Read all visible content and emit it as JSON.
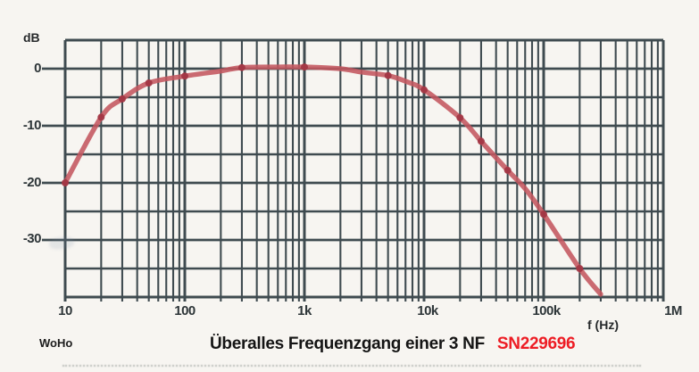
{
  "watermark": "WoHo",
  "caption": {
    "title": "Überalles Frequenzgang einer 3 NF",
    "serial": "SN229696"
  },
  "chart_data": {
    "type": "line",
    "title": "Überalles Frequenzgang einer 3 NF SN229696",
    "description": "Scanned semilog magnitude frequency-response plot (bandpass shape)",
    "x_axis": {
      "label": "f (Hz)",
      "scale": "log",
      "min": 10,
      "max": 1000000,
      "tick_values": [
        10,
        100,
        1000,
        10000,
        100000,
        1000000
      ],
      "tick_labels": [
        "10",
        "100",
        "1k",
        "10k",
        "100k",
        "1M"
      ]
    },
    "y_axis": {
      "label": "dB",
      "min": -40,
      "max": 5,
      "grid_step": 5,
      "tick_values": [
        0,
        -10,
        -20,
        -30
      ],
      "tick_labels": [
        "0",
        "-10",
        "-20",
        "-30"
      ]
    },
    "grid": true,
    "legend": false,
    "series": [
      {
        "name": "frequency-response",
        "color": "#c4565f",
        "marker_color": "#a23543",
        "markers": [
          [
            10,
            -20
          ],
          [
            20,
            -8.5
          ],
          [
            30,
            -5.3
          ],
          [
            50,
            -2.5
          ],
          [
            100,
            -1.3
          ],
          [
            300,
            0.2
          ],
          [
            1000,
            0.3
          ],
          [
            5000,
            -1.2
          ],
          [
            10000,
            -3.7
          ],
          [
            20000,
            -8.6
          ],
          [
            30000,
            -12.7
          ],
          [
            50000,
            -17.8
          ],
          [
            100000,
            -25.5
          ],
          [
            200000,
            -35
          ]
        ],
        "curve": [
          [
            10,
            -20
          ],
          [
            20,
            -8.5
          ],
          [
            30,
            -5.3
          ],
          [
            50,
            -2.5
          ],
          [
            100,
            -1.3
          ],
          [
            200,
            -0.4
          ],
          [
            300,
            0.2
          ],
          [
            600,
            0.3
          ],
          [
            1000,
            0.3
          ],
          [
            2000,
            0
          ],
          [
            3000,
            -0.6
          ],
          [
            5000,
            -1.2
          ],
          [
            7000,
            -2.2
          ],
          [
            10000,
            -3.7
          ],
          [
            20000,
            -8.6
          ],
          [
            30000,
            -12.7
          ],
          [
            50000,
            -17.8
          ],
          [
            70000,
            -21
          ],
          [
            100000,
            -25.5
          ],
          [
            200000,
            -35
          ],
          [
            300000,
            -39.5
          ]
        ]
      }
    ],
    "colors": {
      "grid": "#3f4b50",
      "background": "#f7f5f1",
      "text": "#2d3538",
      "serial_red": "#ed1c24"
    }
  }
}
